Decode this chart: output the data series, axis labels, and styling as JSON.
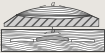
{
  "bg_color": "#e8e5e0",
  "line_color": "#404040",
  "label_a": "a",
  "label_b": "b",
  "fig_width": 1.05,
  "fig_height": 0.53
}
